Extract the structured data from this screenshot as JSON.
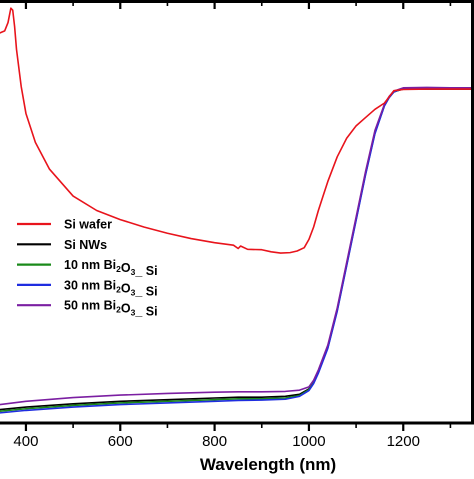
{
  "chart_data": {
    "type": "line",
    "title": "",
    "xlabel": "Wavelength (nm)",
    "ylabel": "",
    "xlim": [
      345,
      1350
    ],
    "ylim": [
      0,
      1
    ],
    "xticks": [
      400,
      600,
      800,
      1000,
      1200
    ],
    "xtick_labels": [
      "400",
      "600",
      "800",
      "1000",
      "1200"
    ],
    "grid": false,
    "legend_position": "left",
    "series": [
      {
        "name": "Si wafer",
        "color": "#e8141c",
        "x": [
          345,
          355,
          362,
          368,
          372,
          376,
          380,
          390,
          400,
          420,
          450,
          500,
          550,
          600,
          650,
          700,
          750,
          800,
          840,
          850,
          855,
          870,
          900,
          920,
          940,
          960,
          975,
          990,
          1000,
          1010,
          1020,
          1030,
          1040,
          1060,
          1080,
          1100,
          1120,
          1140,
          1160,
          1170,
          1180,
          1200,
          1250,
          1300,
          1350
        ],
        "y": [
          0.93,
          0.935,
          0.955,
          0.99,
          0.985,
          0.945,
          0.89,
          0.8,
          0.735,
          0.665,
          0.6,
          0.535,
          0.5,
          0.478,
          0.46,
          0.445,
          0.432,
          0.422,
          0.416,
          0.408,
          0.414,
          0.406,
          0.405,
          0.4,
          0.397,
          0.398,
          0.402,
          0.41,
          0.43,
          0.46,
          0.5,
          0.535,
          0.57,
          0.63,
          0.675,
          0.705,
          0.725,
          0.745,
          0.76,
          0.775,
          0.79,
          0.793,
          0.794,
          0.794,
          0.794
        ]
      },
      {
        "name": "Si NWs",
        "color": "#000000",
        "x": [
          345,
          400,
          500,
          600,
          700,
          800,
          850,
          900,
          950,
          980,
          1000,
          1010,
          1020,
          1040,
          1060,
          1080,
          1100,
          1120,
          1140,
          1160,
          1170,
          1180,
          1200,
          1250,
          1300,
          1350
        ],
        "y": [
          0.018,
          0.024,
          0.032,
          0.038,
          0.042,
          0.046,
          0.048,
          0.048,
          0.05,
          0.055,
          0.068,
          0.085,
          0.11,
          0.17,
          0.26,
          0.37,
          0.48,
          0.59,
          0.69,
          0.755,
          0.775,
          0.788,
          0.794,
          0.794,
          0.794,
          0.794
        ]
      },
      {
        "name": "10 nm Bi2O3_ Si",
        "color": "#1a8a1a",
        "x": [
          345,
          400,
          500,
          600,
          700,
          800,
          850,
          900,
          950,
          980,
          1000,
          1010,
          1020,
          1040,
          1060,
          1080,
          1100,
          1120,
          1140,
          1160,
          1170,
          1180,
          1200,
          1250,
          1300,
          1350
        ],
        "y": [
          0.014,
          0.02,
          0.028,
          0.034,
          0.038,
          0.042,
          0.044,
          0.044,
          0.046,
          0.052,
          0.066,
          0.083,
          0.108,
          0.168,
          0.258,
          0.368,
          0.478,
          0.588,
          0.688,
          0.754,
          0.774,
          0.787,
          0.795,
          0.796,
          0.795,
          0.795
        ]
      },
      {
        "name": "30 nm Bi2O3_ Si",
        "color": "#1f2de0",
        "x": [
          345,
          400,
          500,
          600,
          700,
          800,
          850,
          900,
          950,
          980,
          1000,
          1010,
          1020,
          1040,
          1060,
          1080,
          1100,
          1120,
          1140,
          1160,
          1170,
          1180,
          1200,
          1250,
          1300,
          1350
        ],
        "y": [
          0.01,
          0.016,
          0.024,
          0.03,
          0.034,
          0.038,
          0.04,
          0.041,
          0.043,
          0.05,
          0.064,
          0.081,
          0.106,
          0.166,
          0.256,
          0.366,
          0.476,
          0.586,
          0.686,
          0.753,
          0.773,
          0.787,
          0.796,
          0.797,
          0.796,
          0.796
        ]
      },
      {
        "name": "50 nm Bi2O3_ Si",
        "color": "#7b1fa2",
        "x": [
          345,
          400,
          500,
          600,
          700,
          800,
          850,
          900,
          950,
          980,
          1000,
          1010,
          1020,
          1040,
          1060,
          1080,
          1100,
          1120,
          1140,
          1160,
          1170,
          1180,
          1200,
          1250,
          1300,
          1350
        ],
        "y": [
          0.03,
          0.038,
          0.047,
          0.053,
          0.057,
          0.06,
          0.061,
          0.061,
          0.062,
          0.065,
          0.073,
          0.089,
          0.114,
          0.174,
          0.264,
          0.374,
          0.484,
          0.594,
          0.694,
          0.757,
          0.776,
          0.789,
          0.797,
          0.798,
          0.797,
          0.797
        ]
      }
    ]
  }
}
